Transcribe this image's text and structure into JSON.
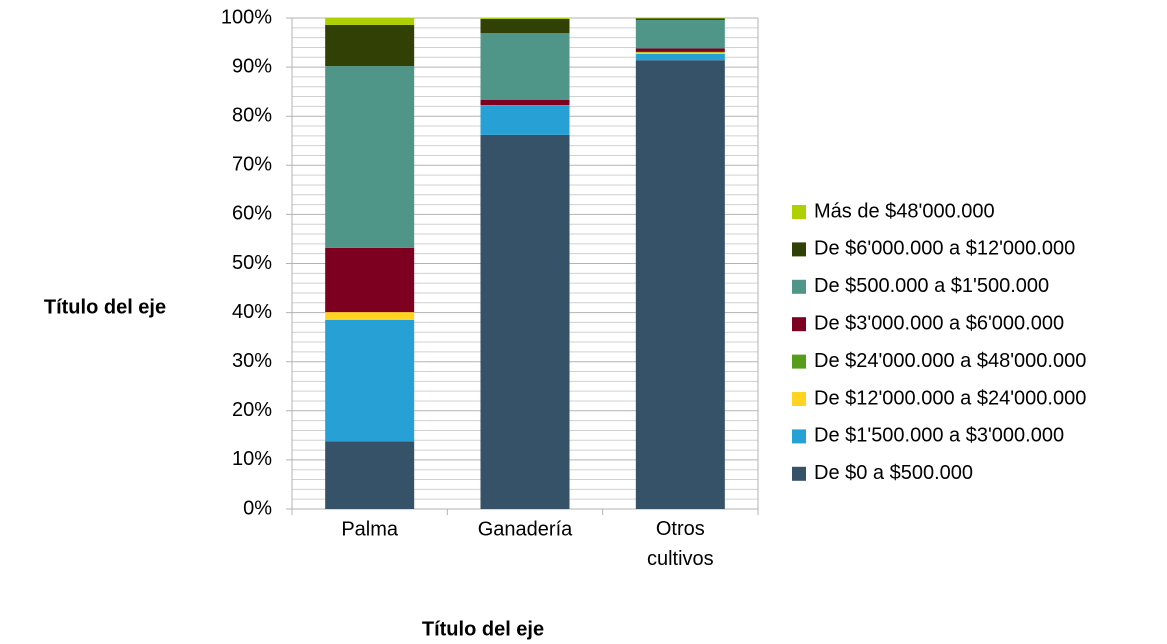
{
  "chart_data": {
    "type": "stacked_bar_percent",
    "x_label": "Título del eje",
    "y_label": "Título del eje",
    "categories": [
      "Palma",
      "Ganadería",
      "Otros cultivos"
    ],
    "series": [
      {
        "name": "De $0 a $500.000",
        "color": "#355269",
        "values": [
          13.8,
          76.2,
          91.4
        ]
      },
      {
        "name": "De $1'500.000 a $3'000.000",
        "color": "#26a0d5",
        "values": [
          24.7,
          5.9,
          1.3
        ]
      },
      {
        "name": "De $12'000.000 a $24'000.000",
        "color": "#ffd320",
        "values": [
          1.6,
          0.1,
          0.3
        ]
      },
      {
        "name": "De $24'000.000 a $48'000.000",
        "color": "#579d1c",
        "values": [
          0,
          0,
          0.1
        ]
      },
      {
        "name": "De $3'000.000 a $6'000.000",
        "color": "#7e0021",
        "values": [
          13.1,
          1.1,
          0.7
        ]
      },
      {
        "name": "De $500.000 a $1'500.000",
        "color": "#4f9688",
        "values": [
          37.0,
          13.6,
          5.8
        ]
      },
      {
        "name": "De $6'000.000 a $12'000.000",
        "color": "#314004",
        "values": [
          8.4,
          2.9,
          0.3
        ]
      },
      {
        "name": "Más de $48'000.000",
        "color": "#aecf00",
        "values": [
          1.4,
          0.2,
          0.1
        ]
      }
    ],
    "ylim": [
      0,
      100
    ],
    "yticks": [
      {
        "value": 0,
        "label": "0%"
      },
      {
        "value": 10,
        "label": "10%"
      },
      {
        "value": 20,
        "label": "20%"
      },
      {
        "value": 30,
        "label": "30%"
      },
      {
        "value": 40,
        "label": "40%"
      },
      {
        "value": 50,
        "label": "50%"
      },
      {
        "value": 60,
        "label": "60%"
      },
      {
        "value": 70,
        "label": "70%"
      },
      {
        "value": 80,
        "label": "80%"
      },
      {
        "value": 90,
        "label": "90%"
      },
      {
        "value": 100,
        "label": "100%"
      }
    ],
    "grid": true,
    "minor_grid": true,
    "legend": "right"
  }
}
